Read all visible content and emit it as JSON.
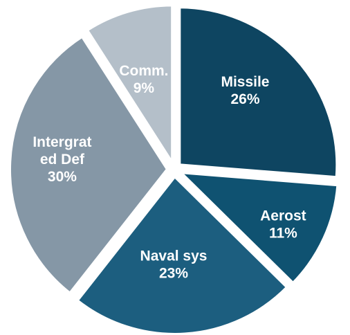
{
  "chart_data": {
    "type": "pie",
    "title": "",
    "slices": [
      {
        "label": [
          "Missile",
          "26%"
        ],
        "value": 26,
        "color": "#0e4561",
        "text_color": "#ffffff"
      },
      {
        "label": [
          "Aerost",
          "11%"
        ],
        "value": 11,
        "color": "#0f5271",
        "text_color": "#ffffff"
      },
      {
        "label": [
          "Naval sys",
          "23%"
        ],
        "value": 23,
        "color": "#1c5e7f",
        "text_color": "#ffffff"
      },
      {
        "label": [
          "Intergrat",
          "ed Def",
          "30%"
        ],
        "value": 30,
        "color": "#8597a6",
        "text_color": "#ffffff"
      },
      {
        "label": [
          "Comm.",
          "9%"
        ],
        "value": 9,
        "color": "#b4bfc9",
        "text_color": "#ffffff"
      }
    ],
    "start_angle_deg": 0,
    "direction": "clockwise",
    "exploded": true,
    "legend": "none"
  }
}
